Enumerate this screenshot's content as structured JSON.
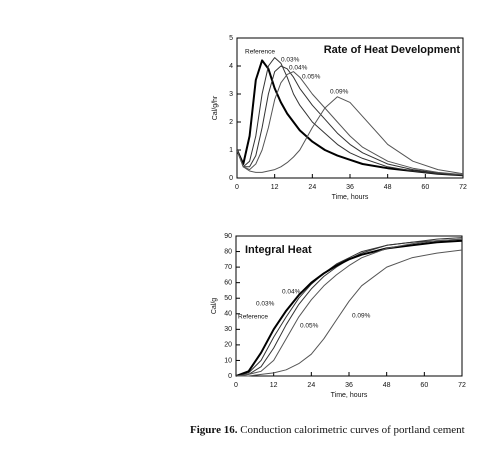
{
  "chart_data": [
    {
      "type": "line",
      "title": "Rate of Heat Development",
      "y_label": "Cal/g/hr",
      "x_label": "Time, hours",
      "xlim": [
        0,
        72
      ],
      "xticks": [
        0,
        12,
        24,
        36,
        48,
        60,
        72
      ],
      "ylim": [
        0,
        5
      ],
      "yticks": [
        0,
        1,
        2,
        3,
        4,
        5
      ],
      "x": [
        0,
        2,
        4,
        6,
        8,
        10,
        12,
        14,
        16,
        18,
        20,
        22,
        24,
        28,
        32,
        36,
        40,
        48,
        56,
        64,
        72
      ],
      "series": [
        {
          "name": "Reference",
          "color": "#000000",
          "values": [
            1.0,
            0.5,
            1.5,
            3.5,
            4.2,
            3.9,
            3.2,
            2.7,
            2.3,
            2.0,
            1.7,
            1.5,
            1.3,
            1.0,
            0.8,
            0.65,
            0.5,
            0.35,
            0.25,
            0.15,
            0.1
          ]
        },
        {
          "name": "0.03%",
          "color": "#333333",
          "values": [
            1.0,
            0.4,
            0.6,
            1.5,
            3.0,
            4.0,
            4.3,
            4.1,
            3.6,
            3.0,
            2.6,
            2.3,
            2.0,
            1.6,
            1.2,
            0.9,
            0.7,
            0.4,
            0.25,
            0.15,
            0.1
          ]
        },
        {
          "name": "0.04%",
          "color": "#333333",
          "values": [
            1.0,
            0.4,
            0.4,
            0.8,
            1.8,
            3.0,
            3.8,
            4.0,
            3.9,
            3.6,
            3.2,
            2.9,
            2.6,
            2.1,
            1.6,
            1.2,
            0.9,
            0.5,
            0.3,
            0.18,
            0.1
          ]
        },
        {
          "name": "0.05%",
          "color": "#555555",
          "values": [
            1.0,
            0.4,
            0.3,
            0.5,
            1.0,
            1.8,
            2.8,
            3.4,
            3.7,
            3.8,
            3.6,
            3.3,
            3.0,
            2.5,
            2.0,
            1.5,
            1.1,
            0.6,
            0.35,
            0.2,
            0.12
          ]
        },
        {
          "name": "0.09%",
          "color": "#555555",
          "values": [
            1.0,
            0.4,
            0.25,
            0.2,
            0.2,
            0.25,
            0.3,
            0.4,
            0.55,
            0.75,
            1.0,
            1.4,
            1.8,
            2.5,
            2.9,
            2.7,
            2.2,
            1.2,
            0.6,
            0.3,
            0.15
          ]
        }
      ]
    },
    {
      "type": "line",
      "title": "Integral Heat",
      "y_label": "Cal/g",
      "x_label": "Time, hours",
      "xlim": [
        0,
        72
      ],
      "xticks": [
        0,
        12,
        24,
        36,
        48,
        60,
        72
      ],
      "ylim": [
        0,
        90
      ],
      "yticks": [
        0,
        10,
        20,
        30,
        40,
        50,
        60,
        70,
        80,
        90
      ],
      "x": [
        0,
        4,
        8,
        12,
        16,
        20,
        24,
        28,
        32,
        36,
        40,
        48,
        56,
        64,
        72
      ],
      "series": [
        {
          "name": "0.04%",
          "color": "#333333",
          "values": [
            0,
            1,
            6,
            18,
            33,
            46,
            56,
            64,
            70,
            75,
            79,
            84,
            86,
            87,
            88
          ]
        },
        {
          "name": "0.03%",
          "color": "#333333",
          "values": [
            0,
            2,
            10,
            25,
            38,
            50,
            59,
            66,
            72,
            76,
            80,
            84,
            86,
            88,
            89
          ]
        },
        {
          "name": "Reference",
          "color": "#000000",
          "values": [
            0,
            3,
            15,
            30,
            42,
            52,
            60,
            66,
            71,
            75,
            78,
            82,
            84,
            86,
            87
          ]
        },
        {
          "name": "0.05%",
          "color": "#555555",
          "values": [
            0,
            1,
            3,
            10,
            24,
            38,
            49,
            58,
            65,
            71,
            76,
            82,
            85,
            87,
            88
          ]
        },
        {
          "name": "0.09%",
          "color": "#555555",
          "values": [
            0,
            0,
            1,
            2,
            4,
            8,
            14,
            24,
            36,
            48,
            58,
            70,
            76,
            79,
            81
          ]
        }
      ]
    }
  ],
  "caption": {
    "label": "Figure 16.",
    "text": "Conduction calorimetric curves of portland cement"
  }
}
